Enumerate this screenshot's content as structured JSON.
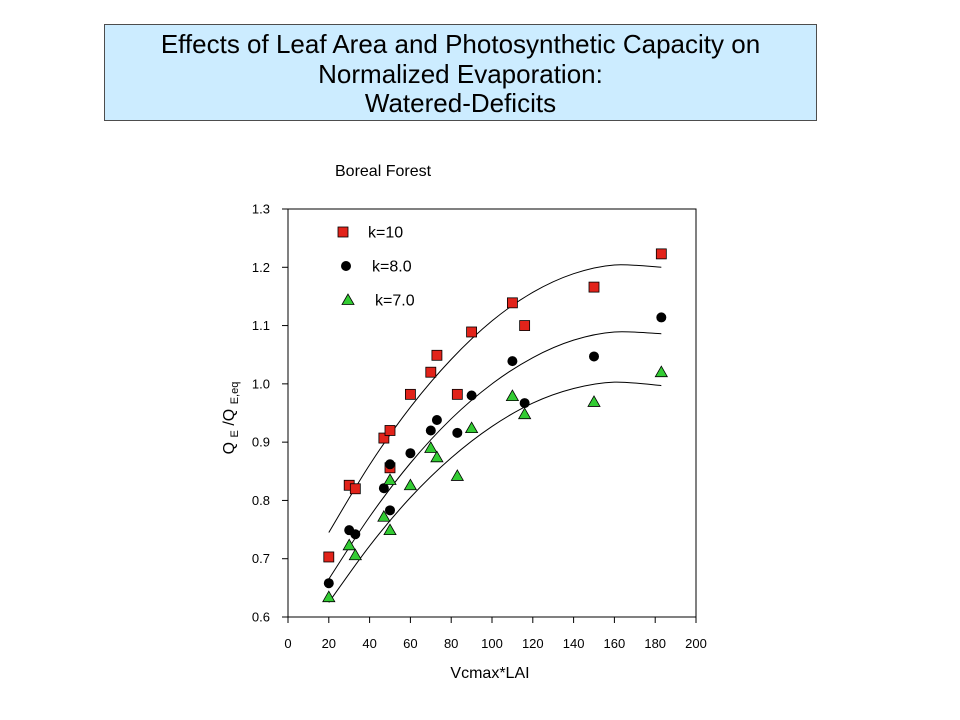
{
  "slide": {
    "title_lines": [
      "Effects of Leaf Area and Photosynthetic Capacity on",
      "Normalized Evaporation:",
      "Watered-Deficits"
    ],
    "title_background": "#ccecff"
  },
  "chart_data": {
    "type": "scatter",
    "title": "Boreal Forest",
    "xlabel": "Vcmax*LAI",
    "ylabel_parts": [
      "Q",
      "E",
      "/Q",
      "E,eq"
    ],
    "xlim": [
      0,
      200
    ],
    "ylim": [
      0.6,
      1.3
    ],
    "xticks": [
      "0",
      "20",
      "40",
      "60",
      "80",
      "100",
      "120",
      "140",
      "160",
      "180",
      "200"
    ],
    "yticks": [
      "0.6",
      "0.7",
      "0.8",
      "0.9",
      "1.0",
      "1.1",
      "1.2",
      "1.3"
    ],
    "grid": false,
    "legend_position": "top-left",
    "fit_color": "#000000",
    "series": [
      {
        "name": "k=10",
        "marker": "square",
        "color": "#e2231a",
        "x": [
          20,
          30,
          33,
          47,
          50,
          50,
          60,
          70,
          73,
          83,
          90,
          110,
          116,
          150,
          183
        ],
        "y": [
          0.703,
          0.826,
          0.82,
          0.907,
          0.92,
          0.856,
          0.982,
          1.02,
          1.049,
          0.982,
          1.089,
          1.139,
          1.1,
          1.166,
          1.223
        ],
        "fit": {
          "x": [
            20,
            40,
            60,
            80,
            100,
            120,
            140,
            160,
            183
          ],
          "y": [
            0.745,
            0.861,
            0.96,
            1.042,
            1.108,
            1.157,
            1.189,
            1.204,
            1.2
          ]
        }
      },
      {
        "name": "k=8.0",
        "marker": "circle",
        "color": "#000000",
        "x": [
          20,
          30,
          33,
          47,
          50,
          50,
          60,
          70,
          73,
          83,
          90,
          110,
          116,
          150,
          183
        ],
        "y": [
          0.658,
          0.749,
          0.742,
          0.821,
          0.862,
          0.783,
          0.881,
          0.92,
          0.938,
          0.916,
          0.98,
          1.039,
          0.967,
          1.047,
          1.114
        ],
        "fit": {
          "x": [
            20,
            40,
            60,
            80,
            100,
            120,
            140,
            160,
            183
          ],
          "y": [
            0.665,
            0.772,
            0.864,
            0.94,
            1.0,
            1.045,
            1.075,
            1.089,
            1.086
          ]
        }
      },
      {
        "name": "k=7.0",
        "marker": "triangle",
        "color": "#33cc33",
        "x": [
          20,
          30,
          33,
          47,
          50,
          50,
          60,
          70,
          73,
          83,
          90,
          110,
          116,
          150,
          183
        ],
        "y": [
          0.634,
          0.723,
          0.706,
          0.772,
          0.835,
          0.749,
          0.826,
          0.89,
          0.874,
          0.842,
          0.924,
          0.979,
          0.948,
          0.969,
          1.02
        ],
        "fit": {
          "x": [
            20,
            40,
            60,
            80,
            100,
            120,
            140,
            160,
            183
          ],
          "y": [
            0.625,
            0.722,
            0.805,
            0.873,
            0.927,
            0.967,
            0.992,
            1.003,
            0.997
          ]
        }
      }
    ]
  }
}
